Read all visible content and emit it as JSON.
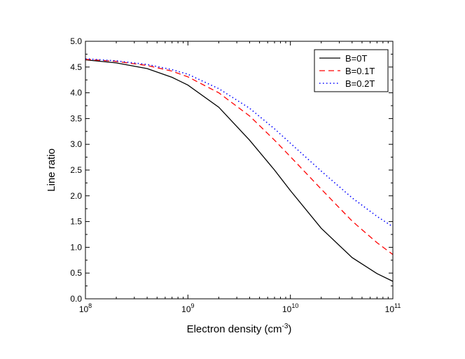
{
  "chart_data": {
    "type": "line",
    "title": "",
    "xlabel": "Electron density (cm⁻³)",
    "xlabel_base": "Electron density (cm",
    "xlabel_exp": "-3",
    "xlabel_close": ")",
    "ylabel": "Line ratio",
    "xscale": "log",
    "xlim": [
      100000000.0,
      100000000000.0
    ],
    "ylim": [
      0.0,
      5.0
    ],
    "x_ticks": [
      {
        "base": "10",
        "exp": "8",
        "value": 100000000.0
      },
      {
        "base": "10",
        "exp": "9",
        "value": 1000000000.0
      },
      {
        "base": "10",
        "exp": "10",
        "value": 10000000000.0
      },
      {
        "base": "10",
        "exp": "11",
        "value": 100000000000.0
      }
    ],
    "y_ticks": [
      "0.0",
      "0.5",
      "1.0",
      "1.5",
      "2.0",
      "2.5",
      "3.0",
      "3.5",
      "4.0",
      "4.5",
      "5.0"
    ],
    "legend_position": "top-right",
    "series": [
      {
        "name": "B=0T",
        "color": "#000000",
        "style": "solid",
        "x": [
          100000000.0,
          200000000.0,
          400000000.0,
          700000000.0,
          1000000000.0,
          2000000000.0,
          4000000000.0,
          7000000000.0,
          10000000000.0,
          20000000000.0,
          40000000000.0,
          70000000000.0,
          100000000000.0
        ],
        "y": [
          4.64,
          4.58,
          4.47,
          4.3,
          4.15,
          3.72,
          3.08,
          2.5,
          2.1,
          1.37,
          0.8,
          0.49,
          0.34
        ]
      },
      {
        "name": "B=0.1T",
        "color": "#ff0000",
        "style": "dashed",
        "x": [
          100000000.0,
          200000000.0,
          400000000.0,
          700000000.0,
          1000000000.0,
          2000000000.0,
          4000000000.0,
          7000000000.0,
          10000000000.0,
          20000000000.0,
          40000000000.0,
          70000000000.0,
          100000000000.0
        ],
        "y": [
          4.65,
          4.61,
          4.53,
          4.42,
          4.31,
          4.0,
          3.55,
          3.08,
          2.76,
          2.13,
          1.51,
          1.09,
          0.86
        ]
      },
      {
        "name": "B=0.2T",
        "color": "#0000ff",
        "style": "dotted",
        "x": [
          100000000.0,
          200000000.0,
          400000000.0,
          700000000.0,
          1000000000.0,
          2000000000.0,
          4000000000.0,
          7000000000.0,
          10000000000.0,
          20000000000.0,
          40000000000.0,
          70000000000.0,
          100000000000.0
        ],
        "y": [
          4.66,
          4.62,
          4.55,
          4.45,
          4.36,
          4.08,
          3.7,
          3.3,
          3.02,
          2.48,
          1.96,
          1.6,
          1.4
        ]
      }
    ]
  }
}
